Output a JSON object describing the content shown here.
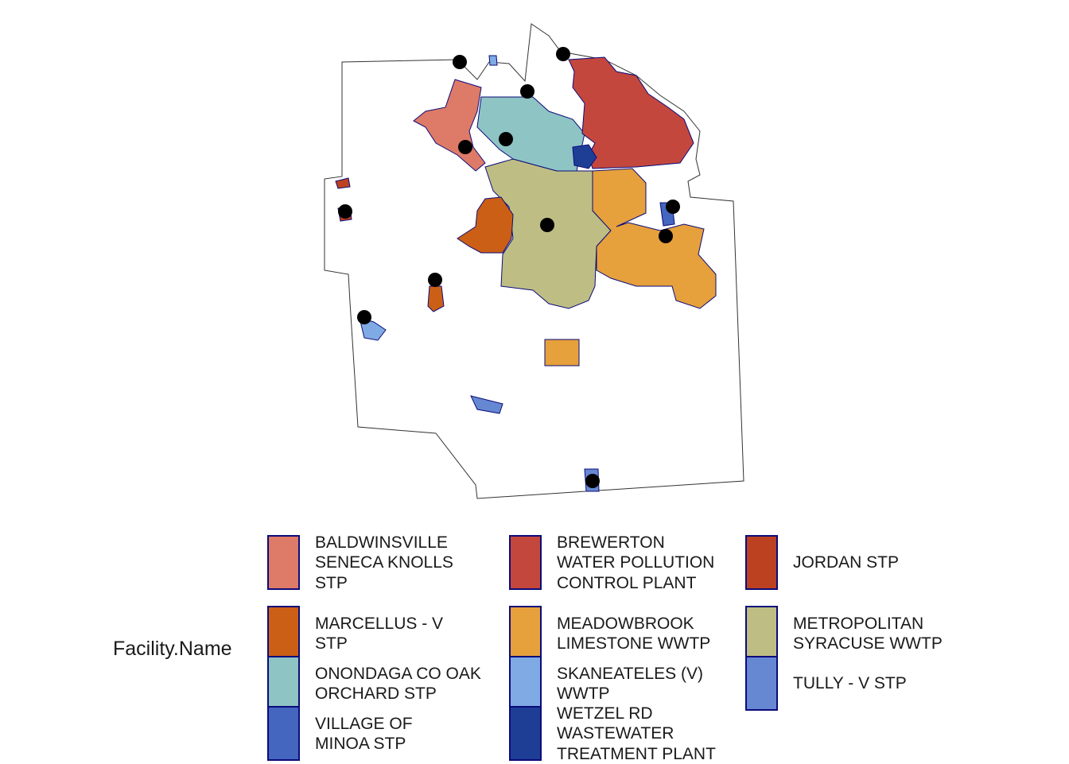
{
  "legend": {
    "title": "Facility.Name",
    "items": [
      {
        "label": "BALDWINSVILLE\nSENECA KNOLLS\nSTP",
        "color": "#DE7A68"
      },
      {
        "label": "BREWERTON\nWATER POLLUTION\nCONTROL PLANT",
        "color": "#C4473E"
      },
      {
        "label": "JORDAN STP",
        "color": "#BC4120"
      },
      {
        "label": "MARCELLUS - V\nSTP",
        "color": "#CC5F16"
      },
      {
        "label": "MEADOWBROOK\nLIMESTONE WWTP",
        "color": "#E6A03C"
      },
      {
        "label": "METROPOLITAN\nSYRACUSE WWTP",
        "color": "#BEBE84"
      },
      {
        "label": "ONONDAGA CO OAK\nORCHARD STP",
        "color": "#8EC4C4"
      },
      {
        "label": "SKANEATELES (V)\nWWTP",
        "color": "#7FAAE4"
      },
      {
        "label": "TULLY - V STP",
        "color": "#6688D2"
      },
      {
        "label": "VILLAGE OF\nMINOA STP",
        "color": "#4466BE"
      },
      {
        "label": "WETZEL RD\nWASTEWATER\nTREATMENT PLANT",
        "color": "#1E3E96"
      }
    ]
  }
}
